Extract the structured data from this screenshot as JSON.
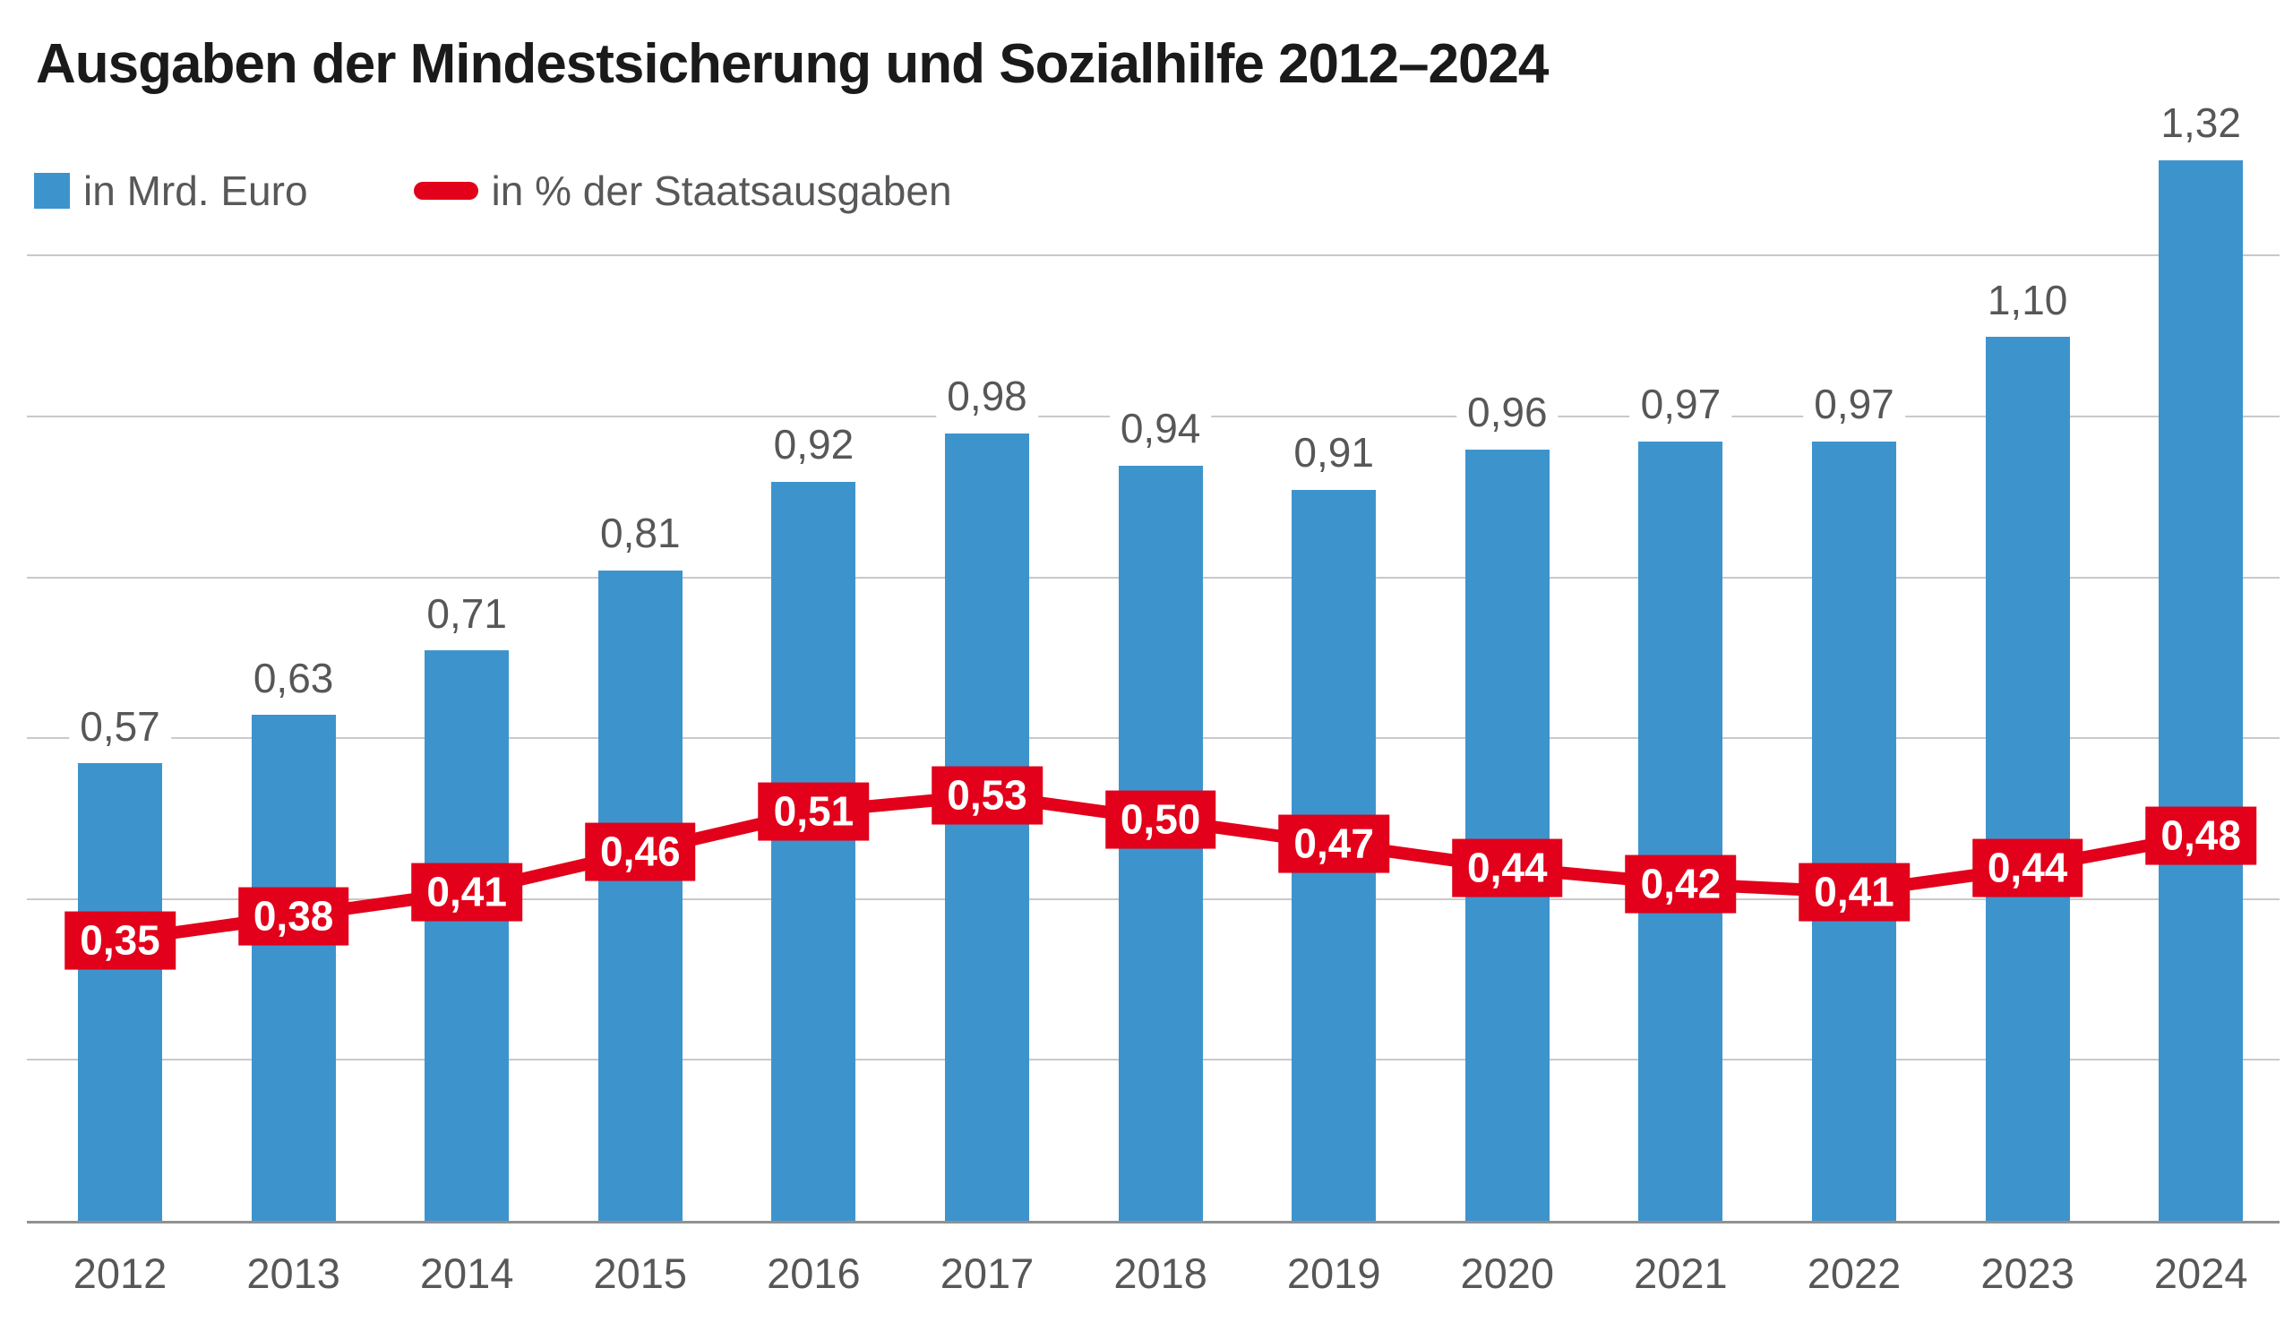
{
  "title": "Ausgaben der Mindestsicherung und Sozialhilfe 2012–2024",
  "legend": [
    {
      "label": "in Mrd. Euro",
      "swatch": "square",
      "color": "#3d94cd"
    },
    {
      "label": "in % der Staatsausgaben",
      "swatch": "line",
      "color": "#e2001a"
    }
  ],
  "colors": {
    "bar": "#3d94cd",
    "line": "#e2001a",
    "title_text": "#1a1a1a",
    "label_text": "#575757",
    "legend_text": "#58585a",
    "gridline": "#c9c9c9",
    "baseline": "#919191",
    "line_label_text": "#ffffff",
    "background": "#ffffff"
  },
  "chart_data": {
    "type": "bar",
    "title": "Ausgaben der Mindestsicherung und Sozialhilfe 2012–2024",
    "categories": [
      "2012",
      "2013",
      "2014",
      "2015",
      "2016",
      "2017",
      "2018",
      "2019",
      "2020",
      "2021",
      "2022",
      "2023",
      "2024"
    ],
    "series": [
      {
        "name": "in Mrd. Euro",
        "type": "bar",
        "color": "#3d94cd",
        "values": [
          0.57,
          0.63,
          0.71,
          0.81,
          0.92,
          0.98,
          0.94,
          0.91,
          0.96,
          0.97,
          0.97,
          1.1,
          1.32
        ]
      },
      {
        "name": "in % der Staatsausgaben",
        "type": "line",
        "color": "#e2001a",
        "values": [
          0.35,
          0.38,
          0.41,
          0.46,
          0.51,
          0.53,
          0.5,
          0.47,
          0.44,
          0.42,
          0.41,
          0.44,
          0.48
        ]
      }
    ],
    "xlabel": "",
    "ylabel": "",
    "ylim": [
      0,
      1.4
    ],
    "gridlines": [
      0.2,
      0.4,
      0.6,
      0.8,
      1.0,
      1.2
    ],
    "grid": "horizontal, no y-axis tick labels",
    "legend_position": "top-left",
    "decimal_separator": ",",
    "value_labels": "above bars and in red boxes on line points"
  }
}
